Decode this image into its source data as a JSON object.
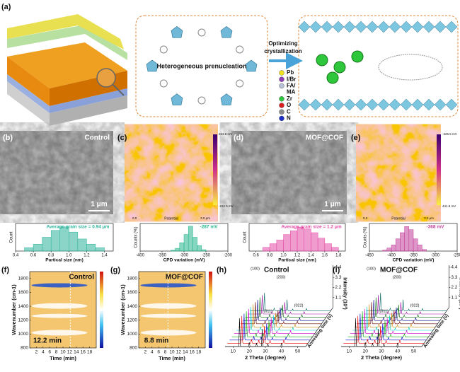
{
  "panel_a": {
    "label": "(a)",
    "center_text": "Heterogeneous prenucleation",
    "arrow_text": [
      "Optimizing",
      "crystallization"
    ],
    "legend": [
      {
        "name": "Pb",
        "color": "#f2e21c"
      },
      {
        "name": "I/Br",
        "color": "#8e3fb5"
      },
      {
        "name": "FA/",
        "color": "#b8c2d6"
      },
      {
        "name": "MA",
        "color": null
      },
      {
        "name": "Zr",
        "color": "#2ec63a"
      },
      {
        "name": "O",
        "color": "#d81e1e"
      },
      {
        "name": "C",
        "color": "#8c8c8c"
      },
      {
        "name": "N",
        "color": "#1c2fc8"
      }
    ]
  },
  "panel_b": {
    "label": "(b)",
    "tag": "Control",
    "scale": "1 μm"
  },
  "panel_c": {
    "label": "(c)",
    "cbar_top": "263.6 mV",
    "cbar_bottom": "-232.5 mV",
    "x0": "0.0",
    "axis": "Potential",
    "x1": "3.0 μm"
  },
  "panel_d": {
    "label": "(d)",
    "tag": "MOF@COF",
    "scale": "1 μm"
  },
  "panel_e": {
    "label": "(e)",
    "cbar_top": "-326.5 mV",
    "cbar_bottom": "441.6 mV",
    "x0": "0.0",
    "axis": "Potential",
    "x1": "3.0 μm"
  },
  "hist_b": {
    "type": "histogram",
    "annotation": "Average grain size = 0.94 μm",
    "ylabel": "Count",
    "xlabel": "Partical size (nm)",
    "color": "#2bb39b",
    "bins": [
      0.5,
      0.6,
      0.7,
      0.8,
      0.9,
      1.0,
      1.1,
      1.2,
      1.3,
      1.4
    ],
    "counts": [
      2,
      4,
      8,
      12,
      14,
      11,
      7,
      4,
      2
    ],
    "xlim": [
      0.4,
      1.5
    ],
    "ylim": [
      0,
      16
    ],
    "xticks": [
      0.4,
      0.6,
      0.8,
      {
        "value": 1.0,
        "label": "1.0"
      },
      1.2,
      1.4
    ]
  },
  "hist_c": {
    "type": "histogram",
    "annotation": "-287 mV",
    "ylabel": "Counts (%)",
    "xlabel": "CPD variation (mV)",
    "color": "#22b58c",
    "bins": [
      -330,
      -320,
      -310,
      -300,
      -290,
      -280,
      -270,
      -260,
      -250
    ],
    "counts": [
      0.3,
      1,
      3,
      6,
      9,
      5,
      2,
      0.5
    ],
    "xlim": [
      -400,
      -200
    ],
    "ylim": [
      0,
      10
    ],
    "xticks": [
      -400,
      -350,
      -300,
      -250,
      -200
    ]
  },
  "hist_d": {
    "type": "histogram",
    "annotation": "Average grain size = 1.2 μm",
    "ylabel": "Count",
    "xlabel": "Partical size (nm)",
    "color": "#e44aa6",
    "bins": [
      0.7,
      0.8,
      0.9,
      1.0,
      1.1,
      1.2,
      1.3,
      1.4,
      1.5,
      1.6,
      1.7,
      1.8
    ],
    "counts": [
      2,
      4,
      6,
      9,
      11,
      13,
      12,
      10,
      7,
      4,
      2
    ],
    "xlim": [
      0.5,
      1.9
    ],
    "ylim": [
      0,
      15
    ],
    "xticks": [
      0.6,
      0.8,
      {
        "value": 1.0,
        "label": "1.0"
      },
      1.2,
      1.4,
      1.6,
      1.8
    ]
  },
  "hist_e": {
    "type": "histogram",
    "annotation": "-368 mV",
    "ylabel": "Counts (%)",
    "xlabel": "CPD variation (mV)",
    "color": "#c2409a",
    "bins": [
      -420,
      -410,
      -400,
      -390,
      -380,
      -370,
      -360,
      -350,
      -340,
      -330,
      -320
    ],
    "counts": [
      0.3,
      1,
      2,
      4,
      6,
      8,
      7,
      4,
      2,
      0.5
    ],
    "xlim": [
      -450,
      -250
    ],
    "ylim": [
      0,
      9
    ],
    "xticks": [
      -450,
      -400,
      -350,
      -300,
      -250
    ]
  },
  "panel_f": {
    "type": "heatmap",
    "label": "(f)",
    "tag": "Control",
    "marker": {
      "value": 12.2,
      "label": "12.2 min"
    },
    "ylabel": "Wavenumber (cm-1)",
    "xlabel": "Time (min)",
    "xlim": [
      0,
      20
    ],
    "ylim": [
      800,
      1900
    ],
    "xticks": [
      2,
      4,
      6,
      8,
      10,
      12,
      14,
      16,
      18
    ],
    "yticks": [
      800,
      1000,
      1200,
      1400,
      1600,
      1800
    ]
  },
  "panel_g": {
    "type": "heatmap",
    "label": "(g)",
    "tag": "MOF@COF",
    "marker": {
      "value": 8.8,
      "label": "8.8 min"
    },
    "ylabel": "Wavenumber (cm-1)",
    "xlabel": "Time (min)",
    "xlim": [
      0,
      20
    ],
    "ylim": [
      800,
      1900
    ],
    "xticks": [
      2,
      4,
      6,
      8,
      10,
      12,
      14,
      16,
      18
    ],
    "yticks": [
      800,
      1000,
      1200,
      1400,
      1600,
      1800
    ]
  },
  "panel_h": {
    "type": "xrd3d",
    "label": "(h)",
    "tag": "Control",
    "peaks": [
      "(100)",
      "(200)",
      "(011)",
      "(022)"
    ],
    "xlabel": "2 Theta (degree)",
    "zlabel": "Annealing time (s)",
    "ylabel": "Intensity (10³)",
    "xlim": [
      5,
      55
    ],
    "xticks": [
      10,
      20,
      30,
      40,
      50
    ],
    "ylim": [
      0,
      4.4
    ],
    "yticks": [
      1.1,
      2.2,
      3.3,
      4.4
    ]
  },
  "panel_i": {
    "type": "xrd3d",
    "label": "(i)",
    "tag": "MOF@COF",
    "peaks": [
      "(100)",
      "(200)",
      "(011)",
      "(022)"
    ],
    "xlabel": "2 Theta (degree)",
    "zlabel": "Annealing time (s)",
    "ylabel": "Intensity (10³)",
    "xlim": [
      5,
      55
    ],
    "xticks": [
      10,
      20,
      30,
      40,
      50
    ],
    "ylim": [
      0,
      4.4
    ],
    "yticks": [
      1.1,
      2.2,
      3.3,
      4.4
    ]
  }
}
